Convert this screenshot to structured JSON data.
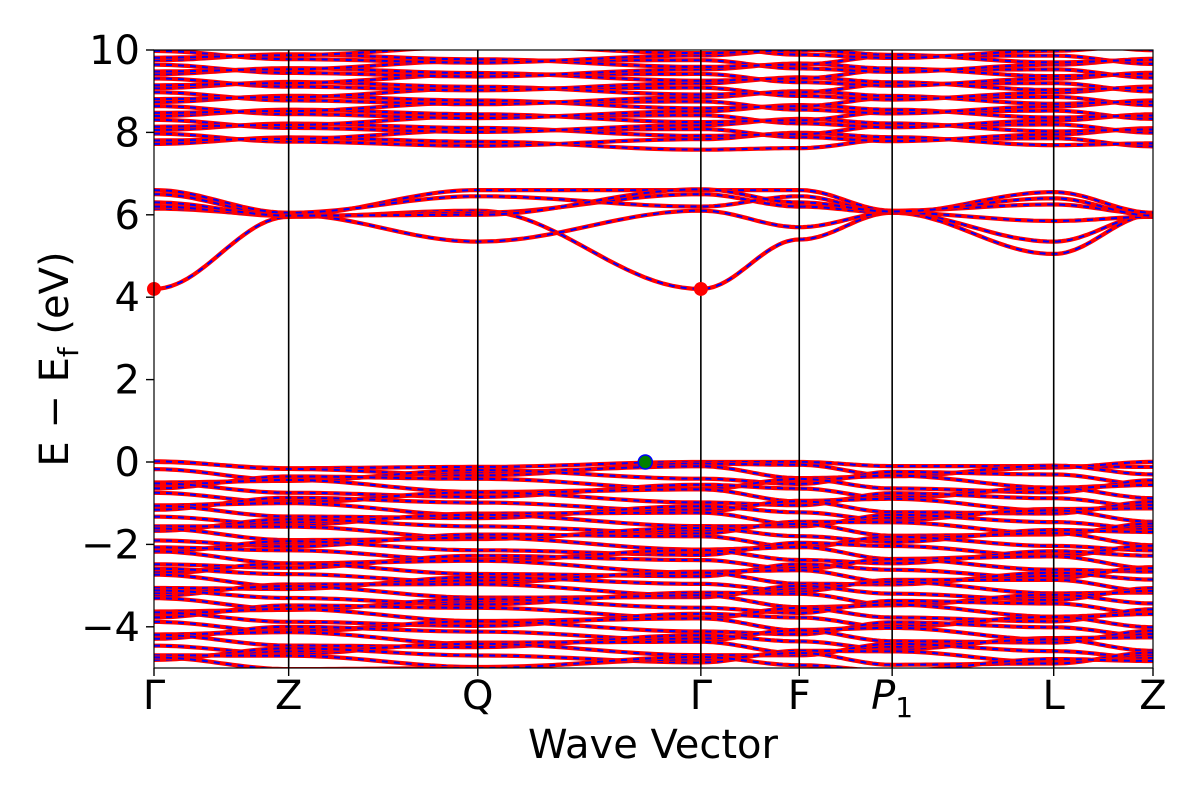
{
  "chart_data": {
    "type": "line",
    "xlabel": "Wave Vector",
    "ylabel": "E − E",
    "ylabel_sub": "f",
    "ylabel_unit": " (eV)",
    "ylim": [
      -5,
      10
    ],
    "yticks": [
      -4,
      -2,
      0,
      2,
      4,
      6,
      8,
      10
    ],
    "ytick_labels": [
      "−4",
      "−2",
      "0",
      "2",
      "4",
      "6",
      "8",
      "10"
    ],
    "grid": false,
    "kpath": [
      {
        "label": "Γ",
        "x": 0.0
      },
      {
        "label": "Z",
        "x": 0.1348
      },
      {
        "label": "Q",
        "x": 0.3241
      },
      {
        "label": "Γ",
        "x": 0.5474
      },
      {
        "label": "F",
        "x": 0.6459
      },
      {
        "label": "P",
        "sub": "1",
        "italic": true,
        "x": 0.7389
      },
      {
        "label": "L",
        "x": 0.9006
      },
      {
        "label": "Z",
        "x": 1.0
      }
    ],
    "xlim": [
      0,
      1
    ],
    "series_colors": {
      "spin_up": "#ff0000",
      "spin_down": "#0000ff"
    },
    "conduction_bands": [
      {
        "values": [
          4.2,
          5.95,
          6.1,
          4.2,
          5.4,
          6.05,
          5.35,
          6.0
        ]
      },
      {
        "values": [
          6.15,
          6.0,
          5.35,
          6.1,
          5.7,
          6.05,
          5.05,
          6.0
        ]
      },
      {
        "values": [
          6.2,
          5.97,
          6.05,
          6.5,
          6.2,
          6.05,
          5.85,
          5.95
        ]
      },
      {
        "values": [
          6.5,
          6.0,
          6.6,
          6.6,
          6.6,
          6.1,
          6.25,
          6.02
        ]
      },
      {
        "values": [
          6.6,
          6.05,
          6.45,
          6.2,
          6.45,
          6.05,
          6.55,
          6.05
        ]
      },
      {
        "values": [
          6.3,
          5.98,
          6.0,
          6.62,
          6.3,
          6.08,
          6.4,
          5.98
        ]
      }
    ],
    "vbm": {
      "x": 0.4918,
      "y": 0.0,
      "color": "#008000"
    },
    "cbm": [
      {
        "x": 0.0,
        "y": 4.2,
        "color": "#ff0000"
      },
      {
        "x": 0.5474,
        "y": 4.2,
        "color": "#ff0000"
      }
    ]
  }
}
